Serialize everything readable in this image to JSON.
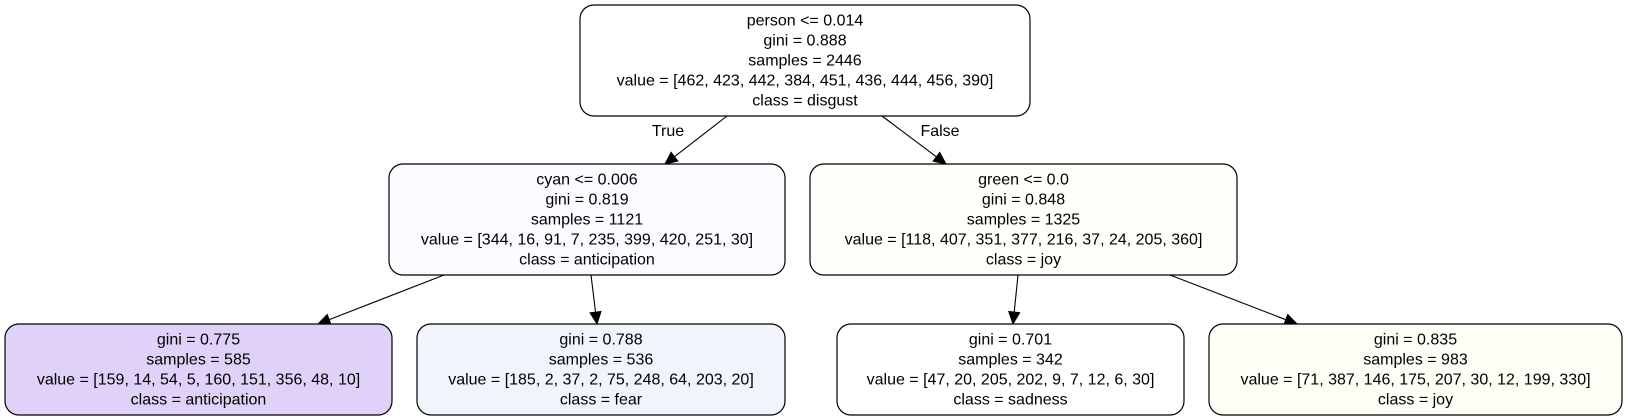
{
  "tree": {
    "nodes": [
      {
        "id": "root",
        "lines": [
          "person <= 0.014",
          "gini = 0.888",
          "samples = 2446",
          "value = [462, 423, 442, 384, 451, 436, 444, 456, 390]",
          "class = disgust"
        ],
        "fill": "#ffffff"
      },
      {
        "id": "left",
        "lines": [
          "cyan <= 0.006",
          "gini = 0.819",
          "samples = 1121",
          "value = [344, 16, 91, 7, 235, 399, 420, 251, 30]",
          "class = anticipation"
        ],
        "fill": "#fcfbff"
      },
      {
        "id": "right",
        "lines": [
          "green <= 0.0",
          "gini = 0.848",
          "samples = 1325",
          "value = [118, 407, 351, 377, 216, 37, 24, 205, 360]",
          "class = joy"
        ],
        "fill": "#fefffb"
      },
      {
        "id": "left-left",
        "lines": [
          "gini = 0.775",
          "samples = 585",
          "value = [159, 14, 54, 5, 160, 151, 356, 48, 10]",
          "class = anticipation"
        ],
        "fill": "#e0d1f8"
      },
      {
        "id": "left-right",
        "lines": [
          "gini = 0.788",
          "samples = 536",
          "value = [185, 2, 37, 2, 75, 248, 64, 203, 20]",
          "class = fear"
        ],
        "fill": "#f1f4fd"
      },
      {
        "id": "right-left",
        "lines": [
          "gini = 0.701",
          "samples = 342",
          "value = [47, 20, 205, 202, 9, 7, 12, 6, 30]",
          "class = sadness"
        ],
        "fill": "#ffffff"
      },
      {
        "id": "right-right",
        "lines": [
          "gini = 0.835",
          "samples = 983",
          "value = [71, 387, 146, 175, 207, 30, 12, 199, 330]",
          "class = joy"
        ],
        "fill": "#fdfef6"
      }
    ],
    "edges": [
      {
        "from": "root",
        "to": "left",
        "label": "True"
      },
      {
        "from": "root",
        "to": "right",
        "label": "False"
      },
      {
        "from": "left",
        "to": "left-left",
        "label": ""
      },
      {
        "from": "left",
        "to": "left-right",
        "label": ""
      },
      {
        "from": "right",
        "to": "right-left",
        "label": ""
      },
      {
        "from": "right",
        "to": "right-right",
        "label": ""
      }
    ]
  }
}
